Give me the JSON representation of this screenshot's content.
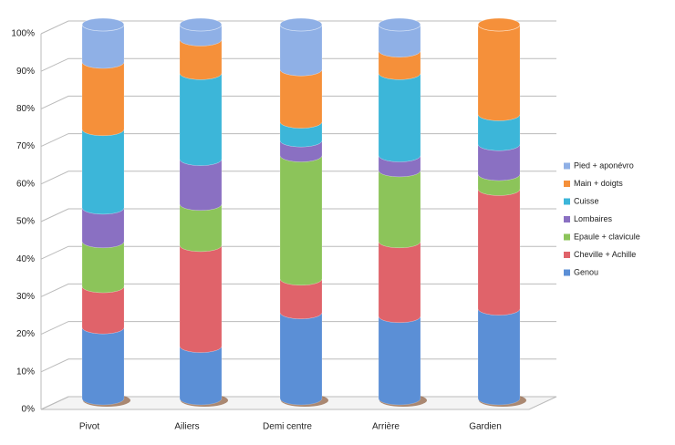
{
  "chart_data": {
    "type": "stacked_bar_3d",
    "categories": [
      "Pivot",
      "Ailiers",
      "Demi centre",
      "Arrière",
      "Gardien"
    ],
    "series": [
      {
        "name": "Genou",
        "color": "#5b8fd6",
        "values": [
          19,
          14,
          23,
          22,
          24
        ]
      },
      {
        "name": "Cheville + Achille",
        "color": "#e0636a",
        "values": [
          11,
          27,
          9,
          20,
          32
        ]
      },
      {
        "name": "Epaule + clavicule",
        "color": "#8cc45a",
        "values": [
          12,
          11,
          33,
          19,
          4
        ]
      },
      {
        "name": "Lombaires",
        "color": "#8a70c2",
        "values": [
          9,
          12,
          4,
          4,
          8
        ]
      },
      {
        "name": "Cuisse",
        "color": "#3cb6d9",
        "values": [
          21,
          23,
          5,
          22,
          8
        ]
      },
      {
        "name": "Main + doigts",
        "color": "#f5903a",
        "values": [
          18,
          9,
          14,
          6,
          24
        ]
      },
      {
        "name": "Pied + aponévro",
        "color": "#8fb0e6",
        "values": [
          10,
          4,
          12,
          7,
          0
        ]
      }
    ],
    "ylim": [
      0,
      100
    ],
    "yticks": [
      {
        "value": 0,
        "label": "0%"
      },
      {
        "value": 10,
        "label": "10%"
      },
      {
        "value": 20,
        "label": "20%"
      },
      {
        "value": 30,
        "label": "30%"
      },
      {
        "value": 40,
        "label": "40%"
      },
      {
        "value": 50,
        "label": "50%"
      },
      {
        "value": 60,
        "label": "60%"
      },
      {
        "value": 70,
        "label": "70%"
      },
      {
        "value": 80,
        "label": "80%"
      },
      {
        "value": 90,
        "label": "90%"
      },
      {
        "value": 100,
        "label": "100%"
      }
    ],
    "grid": true,
    "legend": "right"
  }
}
